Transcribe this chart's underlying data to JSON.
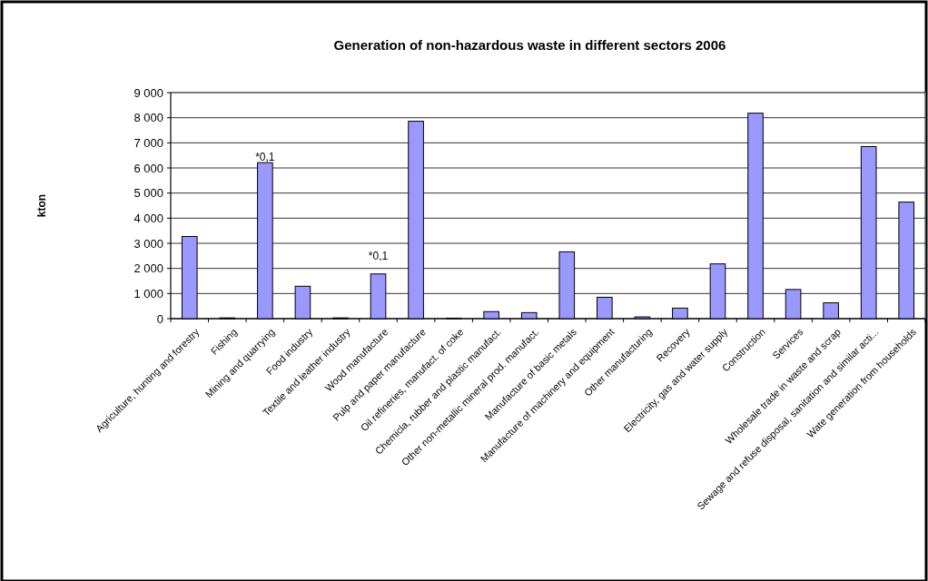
{
  "chart_data": {
    "type": "bar",
    "title": "Generation of non-hazardous waste in different sectors 2006",
    "ylabel": "kton",
    "categories": [
      "Agriculture, hunting and forestry",
      "Fishing",
      "Mining and quarrying",
      "Food industry",
      "Textile and leather industry",
      "Wood manufacture",
      "Pulp and paper manufacture",
      "Oil refineries, manufact. of coke",
      "Chemicla, rubber and plastic manufact.",
      "Other non-metallic mineral prod. manufact.",
      "Manufacture of basic metals",
      "Manufacture of machinery and equipment",
      "Other manufacturing",
      "Recovery",
      "Electricity, gas and water supply",
      "Construction",
      "Services",
      "Wholesale trade in waste and scrap",
      "Sewage and refuse disposal, sanitation and similar acti...",
      "Wate generation from households"
    ],
    "values": [
      3270,
      30,
      6210,
      1290,
      30,
      1780,
      7860,
      20,
      280,
      240,
      2660,
      850,
      70,
      420,
      2180,
      8180,
      1160,
      630,
      6850,
      4640
    ],
    "color": "#9999ff",
    "ylim": [
      0,
      9000
    ],
    "yticks": [
      0,
      {
        "value": 1000,
        "label": "1 000"
      },
      {
        "value": 2000,
        "label": "2 000"
      },
      {
        "value": 3000,
        "label": "3 000"
      },
      {
        "value": 4000,
        "label": "4 000"
      },
      {
        "value": 5000,
        "label": "5 000"
      },
      {
        "value": 6000,
        "label": "6 000"
      },
      {
        "value": 7000,
        "label": "7 000"
      },
      {
        "value": 8000,
        "label": "8 000"
      },
      {
        "value": 9000,
        "label": "9 000"
      }
    ],
    "grid": "y",
    "annotations": [
      "*0,1",
      "*0,1"
    ]
  }
}
